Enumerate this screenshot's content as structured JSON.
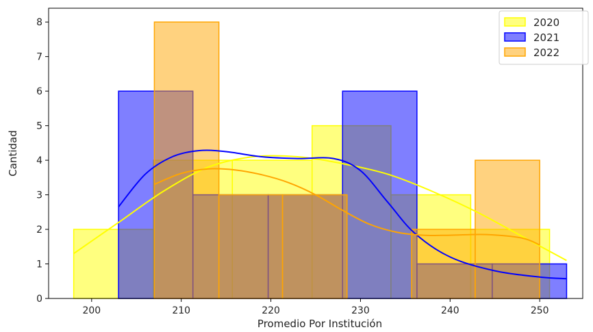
{
  "chart_data": {
    "type": "histogram",
    "title": "",
    "xlabel": "Promedio Por Institución",
    "ylabel": "Cantidad",
    "xlim": [
      195.2,
      254.8
    ],
    "ylim": [
      0,
      8.4
    ],
    "xticks": [
      200,
      210,
      220,
      230,
      240,
      250
    ],
    "yticks": [
      0,
      1,
      2,
      3,
      4,
      5,
      6,
      7,
      8
    ],
    "legend_position": "top-right",
    "kde": true,
    "series": [
      {
        "name": "2020",
        "color": "#ffff00",
        "edge_color": "#ffff00",
        "bins": [
          [
            198,
            206.9
          ],
          [
            206.9,
            215.7
          ],
          [
            215.7,
            224.6
          ],
          [
            224.6,
            233.4
          ],
          [
            233.4,
            242.3
          ],
          [
            242.3,
            251.1
          ]
        ],
        "counts": [
          2,
          4,
          4,
          5,
          3,
          2
        ],
        "kde": {
          "x": [
            198,
            203,
            208,
            213,
            218,
            223,
            228,
            233,
            238,
            243,
            248,
            253
          ],
          "y": [
            1.3,
            2.2,
            3.1,
            3.8,
            4.1,
            4.1,
            3.9,
            3.6,
            3.1,
            2.5,
            1.8,
            1.1
          ]
        }
      },
      {
        "name": "2021",
        "color": "#0000ff",
        "edge_color": "#0000ff",
        "bins": [
          [
            203,
            211.3
          ],
          [
            211.3,
            219.7
          ],
          [
            219.7,
            228.0
          ],
          [
            228.0,
            236.3
          ],
          [
            236.3,
            244.7
          ],
          [
            244.7,
            253
          ]
        ],
        "counts": [
          6,
          3,
          3,
          6,
          1,
          1
        ],
        "kde": {
          "x": [
            203,
            206,
            209,
            212,
            215,
            219,
            223,
            227,
            230,
            233,
            236,
            240,
            245,
            250,
            253
          ],
          "y": [
            2.65,
            3.6,
            4.1,
            4.28,
            4.25,
            4.1,
            4.05,
            4.05,
            3.7,
            2.8,
            1.9,
            1.2,
            0.8,
            0.62,
            0.57
          ]
        }
      },
      {
        "name": "2022",
        "color": "#ffa500",
        "edge_color": "#ffa500",
        "bins": [
          [
            207,
            214.2
          ],
          [
            214.2,
            221.3
          ],
          [
            221.3,
            228.5
          ],
          [
            228.5,
            235.7
          ],
          [
            235.7,
            242.8
          ],
          [
            242.8,
            250
          ]
        ],
        "counts": [
          8,
          3,
          3,
          0,
          2,
          4
        ],
        "kde": {
          "x": [
            207,
            210,
            213,
            216,
            219,
            222,
            225,
            228,
            231,
            234,
            237,
            240,
            244,
            248,
            250
          ],
          "y": [
            3.3,
            3.62,
            3.75,
            3.72,
            3.58,
            3.35,
            3.0,
            2.55,
            2.15,
            1.92,
            1.83,
            1.83,
            1.85,
            1.75,
            1.55
          ]
        }
      }
    ]
  }
}
